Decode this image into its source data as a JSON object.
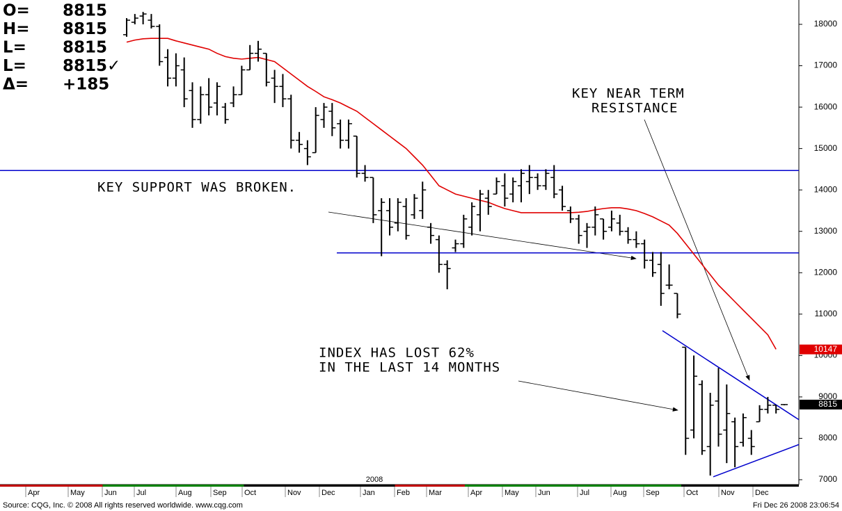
{
  "stats": {
    "labels": [
      "O=",
      "H=",
      "L=",
      "L=",
      "Δ="
    ],
    "values": [
      "8815",
      "8815",
      "8815",
      "8815✓",
      "+185"
    ]
  },
  "footer": {
    "source": "Source: CQG, Inc. © 2008 All rights reserved worldwide. www.cqg.com",
    "timestamp": "Fri Dec 26 2008 23:06:54"
  },
  "chart_data": {
    "type": "ohlc",
    "annotations": [
      "KEY SUPPORT WAS BROKEN.",
      "KEY NEAR TERM",
      "RESISTANCE",
      "INDEX HAS LOST 62%",
      "IN THE LAST 14 MONTHS"
    ],
    "year_label": "2008",
    "months": [
      "Apr",
      "May",
      "Jun",
      "Jul",
      "Aug",
      "Sep",
      "Oct",
      "Nov",
      "Dec",
      "Jan",
      "Feb",
      "Mar",
      "Apr",
      "May",
      "Jun",
      "Jul",
      "Aug",
      "Sep",
      "Oct",
      "Nov",
      "Dec"
    ],
    "ylim": [
      7000,
      18000
    ],
    "yticks": [
      7000,
      8000,
      9000,
      10000,
      11000,
      12000,
      13000,
      14000,
      15000,
      16000,
      17000,
      18000
    ],
    "bar_color": "#000000",
    "ma_color": "#e00000",
    "line_color": "#0000cc",
    "price_tags": [
      {
        "value": 10147,
        "label": "10147",
        "color": "#e00000"
      },
      {
        "value": 8815,
        "label": "8815",
        "color": "#000000"
      }
    ],
    "hlines": [
      14470,
      12480
    ],
    "trendlines": [
      {
        "start": 10600,
        "end": 8450
      },
      {
        "start": 7070,
        "end": 7850
      }
    ],
    "bars": [
      [
        17750,
        18150,
        17700,
        18100
      ],
      [
        18050,
        18250,
        18000,
        18150
      ],
      [
        18200,
        18300,
        18000,
        18250
      ],
      [
        18100,
        18250,
        17900,
        17950
      ],
      [
        17950,
        18000,
        17000,
        17100
      ],
      [
        17200,
        17400,
        16500,
        16700
      ],
      [
        16700,
        17300,
        16500,
        17000
      ],
      [
        16900,
        17200,
        16000,
        16200
      ],
      [
        16400,
        16600,
        15500,
        15700
      ],
      [
        15700,
        16500,
        15600,
        16300
      ],
      [
        16300,
        16700,
        15800,
        16000
      ],
      [
        16100,
        16600,
        15800,
        16500
      ],
      [
        16000,
        16100,
        15600,
        15700
      ],
      [
        16100,
        16500,
        16000,
        16300
      ],
      [
        16300,
        17000,
        16300,
        16900
      ],
      [
        16900,
        17500,
        16900,
        17300
      ],
      [
        17300,
        17600,
        17100,
        17400
      ],
      [
        17300,
        17300,
        16500,
        16600
      ],
      [
        16700,
        16900,
        16100,
        16500
      ],
      [
        16500,
        16800,
        16000,
        16200
      ],
      [
        16200,
        16300,
        15000,
        15200
      ],
      [
        15200,
        15400,
        14900,
        15100
      ],
      [
        15000,
        15200,
        14600,
        14800
      ],
      [
        14900,
        16000,
        14900,
        15800
      ],
      [
        15700,
        16100,
        15500,
        16000
      ],
      [
        15900,
        16100,
        15300,
        15500
      ],
      [
        15600,
        15700,
        15000,
        15200
      ],
      [
        15200,
        15700,
        15000,
        15600
      ],
      [
        15300,
        15300,
        14300,
        14400
      ],
      [
        14400,
        14600,
        14200,
        14300
      ],
      [
        14300,
        14300,
        13200,
        13400
      ],
      [
        13500,
        13800,
        12400,
        13700
      ],
      [
        13500,
        13800,
        12900,
        13100
      ],
      [
        13200,
        13800,
        13000,
        13700
      ],
      [
        13600,
        13800,
        12800,
        12900
      ],
      [
        13400,
        13900,
        13300,
        13800
      ],
      [
        13500,
        14200,
        13300,
        14000
      ],
      [
        13100,
        13200,
        12700,
        12900
      ],
      [
        12800,
        12900,
        12000,
        12200
      ],
      [
        12200,
        12300,
        11600,
        12100
      ],
      [
        12600,
        12800,
        12500,
        12700
      ],
      [
        12700,
        13400,
        12600,
        13300
      ],
      [
        13100,
        13700,
        12900,
        13600
      ],
      [
        13400,
        14000,
        13000,
        13900
      ],
      [
        13800,
        14000,
        13400,
        13600
      ],
      [
        13900,
        14300,
        13900,
        14200
      ],
      [
        14100,
        14400,
        13600,
        13800
      ],
      [
        13900,
        14300,
        13700,
        14200
      ],
      [
        14100,
        14500,
        13700,
        14400
      ],
      [
        14200,
        14600,
        13900,
        14300
      ],
      [
        14300,
        14400,
        14000,
        14100
      ],
      [
        14100,
        14500,
        14000,
        14400
      ],
      [
        14300,
        14600,
        13800,
        13900
      ],
      [
        14000,
        14100,
        13500,
        13600
      ],
      [
        13500,
        13600,
        13200,
        13300
      ],
      [
        13300,
        13400,
        12700,
        12900
      ],
      [
        13000,
        13200,
        12600,
        13100
      ],
      [
        13100,
        13600,
        12900,
        13400
      ],
      [
        13300,
        13300,
        12800,
        13000
      ],
      [
        13100,
        13500,
        13000,
        13300
      ],
      [
        13200,
        13400,
        12900,
        13000
      ],
      [
        13000,
        13100,
        12700,
        12800
      ],
      [
        12800,
        13000,
        12600,
        12700
      ],
      [
        12700,
        12800,
        12100,
        12300
      ],
      [
        12300,
        12500,
        11900,
        12000
      ],
      [
        12200,
        12500,
        11200,
        11500
      ],
      [
        11700,
        12200,
        11600,
        11700
      ],
      [
        11500,
        11500,
        10900,
        11000
      ],
      [
        10200,
        10200,
        7600,
        8000
      ],
      [
        8200,
        10000,
        8000,
        9500
      ],
      [
        9300,
        9400,
        7600,
        7700
      ],
      [
        7800,
        9100,
        7100,
        8800
      ],
      [
        8900,
        9700,
        7800,
        8100
      ],
      [
        8200,
        9300,
        7400,
        8600
      ],
      [
        8400,
        8500,
        7300,
        7800
      ],
      [
        7900,
        8600,
        7800,
        8500
      ],
      [
        8000,
        8200,
        7600,
        7800
      ],
      [
        8400,
        8800,
        8400,
        8700
      ],
      [
        8700,
        9000,
        8600,
        8800
      ],
      [
        8800,
        8800,
        8600,
        8700
      ],
      [
        8815,
        8815,
        8815,
        8815
      ]
    ],
    "ma": [
      17570,
      17620,
      17650,
      17660,
      17660,
      17660,
      17600,
      17550,
      17500,
      17450,
      17400,
      17300,
      17220,
      17180,
      17160,
      17180,
      17200,
      17150,
      17100,
      16950,
      16800,
      16650,
      16500,
      16380,
      16250,
      16180,
      16100,
      16000,
      15900,
      15750,
      15600,
      15450,
      15300,
      15150,
      15000,
      14800,
      14600,
      14350,
      14100,
      14000,
      13900,
      13850,
      13800,
      13750,
      13700,
      13620,
      13550,
      13500,
      13450,
      13450,
      13450,
      13450,
      13450,
      13450,
      13450,
      13460,
      13480,
      13520,
      13550,
      13570,
      13570,
      13540,
      13500,
      13430,
      13350,
      13250,
      13150,
      12950,
      12700,
      12450,
      12200,
      11950,
      11700,
      11500,
      11300,
      11100,
      10900,
      10700,
      10500,
      10150,
      null
    ]
  }
}
